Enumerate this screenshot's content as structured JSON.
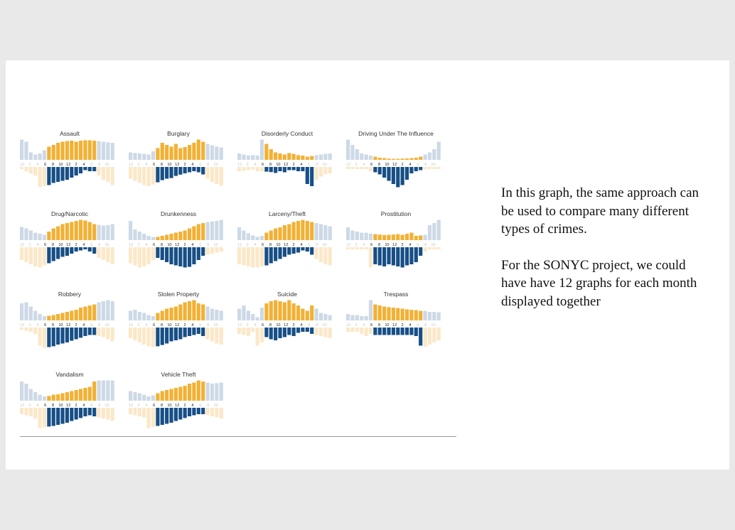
{
  "colors": {
    "pm_top": "#cdd9e6",
    "am_top": "#f2b134",
    "pm_bottom": "#fbe8c8",
    "am_bottom": "#174f86",
    "tick_dark": "#222222",
    "tick_faded": "#c7c7c7"
  },
  "caption": {
    "p1": "In this graph, the same approach can be used to compare many different types of crimes.",
    "p2": "For the SONYC project, we could have have 12 graphs for each month displayed together"
  },
  "hour_tick_labels": [
    "12",
    "2",
    "4",
    "6",
    "8",
    "10",
    "12",
    "2",
    "4",
    "6",
    "8",
    "10"
  ],
  "chart_data": [
    {
      "type": "bar",
      "title": "Assault",
      "top": [
        0.95,
        0.85,
        0.35,
        0.25,
        0.3,
        0.45,
        0.62,
        0.7,
        0.8,
        0.85,
        0.88,
        0.9,
        0.85,
        0.9,
        0.92,
        0.92,
        0.9,
        0.88,
        0.85,
        0.82,
        0.8
      ],
      "bottom": [
        0.1,
        0.2,
        0.3,
        0.4,
        0.95,
        0.9,
        0.85,
        0.75,
        0.7,
        0.65,
        0.6,
        0.5,
        0.4,
        0.3,
        0.15,
        0.2,
        0.2,
        0.4,
        0.6,
        0.7,
        0.85
      ]
    },
    {
      "type": "bar",
      "title": "Burglary",
      "top": [
        0.35,
        0.32,
        0.3,
        0.28,
        0.25,
        0.4,
        0.55,
        0.8,
        0.7,
        0.62,
        0.75,
        0.55,
        0.6,
        0.7,
        0.8,
        0.95,
        0.85,
        0.75,
        0.68,
        0.62,
        0.58
      ],
      "bottom": [
        0.55,
        0.65,
        0.75,
        0.85,
        0.9,
        0.82,
        0.72,
        0.62,
        0.55,
        0.52,
        0.42,
        0.36,
        0.3,
        0.25,
        0.2,
        0.25,
        0.35,
        0.55,
        0.7,
        0.8,
        0.88
      ]
    },
    {
      "type": "bar",
      "title": "Disorderly Conduct",
      "top": [
        0.3,
        0.25,
        0.2,
        0.22,
        0.2,
        0.95,
        0.75,
        0.5,
        0.35,
        0.3,
        0.25,
        0.32,
        0.28,
        0.22,
        0.2,
        0.15,
        0.18,
        0.22,
        0.25,
        0.28,
        0.3
      ],
      "bottom": [
        0.2,
        0.18,
        0.15,
        0.12,
        0.2,
        0.2,
        0.22,
        0.24,
        0.28,
        0.2,
        0.25,
        0.15,
        0.15,
        0.2,
        0.2,
        0.8,
        0.9,
        0.6,
        0.45,
        0.35,
        0.3
      ]
    },
    {
      "type": "bar",
      "title": "Driving Under The Influence",
      "top": [
        0.95,
        0.7,
        0.5,
        0.3,
        0.25,
        0.2,
        0.15,
        0.1,
        0.08,
        0.06,
        0.05,
        0.05,
        0.06,
        0.07,
        0.08,
        0.1,
        0.15,
        0.25,
        0.35,
        0.5,
        0.85
      ],
      "bottom": [
        0.1,
        0.1,
        0.1,
        0.1,
        0.1,
        0.2,
        0.25,
        0.35,
        0.5,
        0.65,
        0.8,
        0.95,
        0.85,
        0.6,
        0.3,
        0.2,
        0.15,
        0.12,
        0.1,
        0.1,
        0.1
      ]
    },
    {
      "type": "bar",
      "title": "Drug/Narcotic",
      "top": [
        0.62,
        0.55,
        0.45,
        0.35,
        0.3,
        0.25,
        0.4,
        0.55,
        0.65,
        0.75,
        0.8,
        0.85,
        0.9,
        0.95,
        0.92,
        0.85,
        0.75,
        0.72,
        0.68,
        0.7,
        0.75
      ],
      "bottom": [
        0.6,
        0.7,
        0.8,
        0.9,
        0.95,
        0.85,
        0.75,
        0.65,
        0.55,
        0.45,
        0.4,
        0.3,
        0.2,
        0.15,
        0.1,
        0.2,
        0.3,
        0.5,
        0.6,
        0.7,
        0.8
      ]
    },
    {
      "type": "bar",
      "title": "Drunkenness",
      "top": [
        0.9,
        0.5,
        0.4,
        0.3,
        0.2,
        0.15,
        0.15,
        0.2,
        0.25,
        0.3,
        0.35,
        0.4,
        0.45,
        0.55,
        0.65,
        0.75,
        0.8,
        0.85,
        0.88,
        0.9,
        0.95
      ],
      "bottom": [
        0.75,
        0.85,
        0.95,
        0.9,
        0.8,
        0.6,
        0.5,
        0.6,
        0.7,
        0.8,
        0.85,
        0.9,
        0.95,
        0.92,
        0.8,
        0.6,
        0.4,
        0.35,
        0.3,
        0.25,
        0.2
      ]
    },
    {
      "type": "bar",
      "title": "Larceny/Theft",
      "top": [
        0.6,
        0.45,
        0.32,
        0.22,
        0.15,
        0.2,
        0.35,
        0.45,
        0.55,
        0.6,
        0.7,
        0.75,
        0.85,
        0.9,
        0.95,
        0.9,
        0.85,
        0.8,
        0.75,
        0.7,
        0.65
      ],
      "bottom": [
        0.8,
        0.85,
        0.9,
        0.95,
        0.95,
        0.9,
        0.85,
        0.75,
        0.65,
        0.55,
        0.45,
        0.35,
        0.3,
        0.25,
        0.15,
        0.2,
        0.35,
        0.55,
        0.7,
        0.8,
        0.85
      ]
    },
    {
      "type": "bar",
      "title": "Prostitution",
      "top": [
        0.6,
        0.45,
        0.4,
        0.35,
        0.35,
        0.3,
        0.28,
        0.26,
        0.24,
        0.25,
        0.26,
        0.28,
        0.25,
        0.3,
        0.35,
        0.2,
        0.22,
        0.25,
        0.7,
        0.8,
        0.95
      ],
      "bottom": [
        0.1,
        0.1,
        0.1,
        0.1,
        0.1,
        0.95,
        0.8,
        0.85,
        0.9,
        0.8,
        0.85,
        0.9,
        0.95,
        0.85,
        0.8,
        0.7,
        0.4,
        0.2,
        0.1,
        0.1,
        0.1
      ]
    },
    {
      "type": "bar",
      "title": "Robbery",
      "top": [
        0.8,
        0.85,
        0.65,
        0.45,
        0.3,
        0.2,
        0.22,
        0.25,
        0.3,
        0.35,
        0.4,
        0.45,
        0.5,
        0.6,
        0.65,
        0.7,
        0.75,
        0.85,
        0.9,
        0.95,
        0.9
      ],
      "bottom": [
        0.1,
        0.15,
        0.2,
        0.3,
        0.85,
        0.95,
        0.92,
        0.88,
        0.8,
        0.75,
        0.7,
        0.62,
        0.55,
        0.48,
        0.4,
        0.35,
        0.35,
        0.4,
        0.45,
        0.55,
        0.65
      ]
    },
    {
      "type": "bar",
      "title": "Stolen Property",
      "top": [
        0.45,
        0.5,
        0.4,
        0.35,
        0.25,
        0.2,
        0.35,
        0.45,
        0.55,
        0.6,
        0.65,
        0.75,
        0.85,
        0.9,
        0.95,
        0.8,
        0.75,
        0.65,
        0.55,
        0.5,
        0.45
      ],
      "bottom": [
        0.5,
        0.6,
        0.7,
        0.8,
        0.88,
        0.92,
        0.88,
        0.82,
        0.75,
        0.65,
        0.6,
        0.55,
        0.45,
        0.4,
        0.35,
        0.3,
        0.4,
        0.55,
        0.65,
        0.75,
        0.8
      ]
    },
    {
      "type": "bar",
      "title": "Suicide",
      "top": [
        0.55,
        0.7,
        0.45,
        0.3,
        0.15,
        0.6,
        0.8,
        0.9,
        0.95,
        0.9,
        0.85,
        0.95,
        0.8,
        0.7,
        0.55,
        0.45,
        0.7,
        0.55,
        0.35,
        0.3,
        0.25
      ],
      "bottom": [
        0.3,
        0.35,
        0.4,
        0.2,
        0.85,
        0.7,
        0.45,
        0.55,
        0.6,
        0.5,
        0.45,
        0.35,
        0.4,
        0.25,
        0.2,
        0.2,
        0.3,
        0.35,
        0.4,
        0.45,
        0.5
      ],
      "bottom_am_max": 0.45
    },
    {
      "type": "bar",
      "title": "Trespass",
      "top": [
        0.3,
        0.25,
        0.25,
        0.2,
        0.2,
        0.95,
        0.75,
        0.7,
        0.65,
        0.62,
        0.6,
        0.58,
        0.55,
        0.52,
        0.5,
        0.48,
        0.45,
        0.45,
        0.4,
        0.4,
        0.38
      ],
      "bottom": [
        0.2,
        0.2,
        0.2,
        0.3,
        0.4,
        0.3,
        0.35,
        0.35,
        0.35,
        0.35,
        0.35,
        0.35,
        0.35,
        0.35,
        0.35,
        0.4,
        0.85,
        0.9,
        0.8,
        0.7,
        0.6
      ]
    },
    {
      "type": "bar",
      "title": "Vandalism",
      "top": [
        0.9,
        0.8,
        0.55,
        0.4,
        0.28,
        0.2,
        0.22,
        0.28,
        0.3,
        0.35,
        0.4,
        0.45,
        0.5,
        0.55,
        0.6,
        0.65,
        0.9,
        0.95,
        0.95,
        0.95,
        0.95
      ],
      "bottom": [
        0.3,
        0.35,
        0.4,
        0.5,
        0.95,
        0.92,
        0.88,
        0.85,
        0.8,
        0.75,
        0.7,
        0.62,
        0.55,
        0.48,
        0.4,
        0.35,
        0.4,
        0.45,
        0.5,
        0.55,
        0.6
      ]
    },
    {
      "type": "bar",
      "title": "Vehicle Theft",
      "top": [
        0.45,
        0.4,
        0.35,
        0.28,
        0.2,
        0.25,
        0.35,
        0.45,
        0.5,
        0.55,
        0.6,
        0.65,
        0.7,
        0.8,
        0.85,
        0.95,
        0.9,
        0.85,
        0.8,
        0.82,
        0.85
      ],
      "bottom": [
        0.3,
        0.35,
        0.4,
        0.45,
        0.95,
        0.9,
        0.85,
        0.8,
        0.75,
        0.7,
        0.62,
        0.55,
        0.48,
        0.4,
        0.35,
        0.3,
        0.3,
        0.35,
        0.4,
        0.45,
        0.5
      ]
    }
  ]
}
